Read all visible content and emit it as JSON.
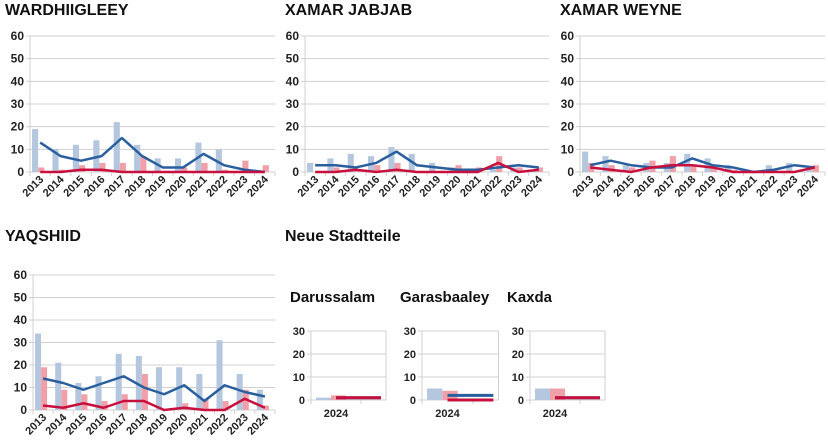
{
  "section_title": "Neue Stadtteile",
  "colors": {
    "bar_a": "#b4c7de",
    "bar_b": "#f0a0a8",
    "line_a": "#2a5f9e",
    "line_b": "#c8103e",
    "grid": "#d0d0d0"
  },
  "chart_data": [
    {
      "type": "bar+line",
      "title": "WARDHIIGLEEY",
      "categories": [
        "2013",
        "2014",
        "2015",
        "2016",
        "2017",
        "2018",
        "2019",
        "2020",
        "2021",
        "2022",
        "2023",
        "2024"
      ],
      "ylim": [
        0,
        60
      ],
      "yticks": [
        0,
        10,
        20,
        30,
        40,
        50,
        60
      ],
      "grid": true,
      "bars": [
        [
          19,
          10,
          12,
          14,
          22,
          12,
          6,
          6,
          13,
          10,
          0,
          0
        ],
        [
          2,
          1,
          3,
          4,
          4,
          7,
          0,
          2,
          4,
          1,
          5,
          3
        ]
      ],
      "lines": [
        [
          13,
          7,
          5,
          7,
          15,
          7,
          2,
          2,
          8,
          3,
          1,
          0
        ],
        [
          0,
          0,
          1,
          1,
          0,
          0,
          0,
          0,
          0,
          0,
          0,
          0
        ]
      ]
    },
    {
      "type": "bar+line",
      "title": "XAMAR JABJAB",
      "categories": [
        "2013",
        "2014",
        "2015",
        "2016",
        "2017",
        "2018",
        "2019",
        "2020",
        "2021",
        "2022",
        "2023",
        "2024"
      ],
      "ylim": [
        0,
        60
      ],
      "yticks": [
        0,
        10,
        20,
        30,
        40,
        50,
        60
      ],
      "grid": true,
      "bars": [
        [
          4,
          6,
          8,
          7,
          11,
          8,
          4,
          2,
          1,
          1,
          2,
          1
        ],
        [
          0,
          2,
          1,
          3,
          4,
          0,
          0,
          3,
          2,
          7,
          2,
          2
        ]
      ],
      "lines": [
        [
          3,
          3,
          2,
          4,
          9,
          3,
          2,
          1,
          1,
          2,
          3,
          2
        ],
        [
          0,
          0,
          1,
          0,
          1,
          0,
          0,
          0,
          0,
          4,
          0,
          1
        ]
      ]
    },
    {
      "type": "bar+line",
      "title": "XAMAR WEYNE",
      "categories": [
        "2013",
        "2014",
        "2015",
        "2016",
        "2017",
        "2018",
        "2019",
        "2020",
        "2021",
        "2022",
        "2023",
        "2024"
      ],
      "ylim": [
        0,
        60
      ],
      "yticks": [
        0,
        10,
        20,
        30,
        40,
        50,
        60
      ],
      "grid": true,
      "bars": [
        [
          9,
          7,
          3,
          4,
          4,
          8,
          6,
          3,
          0,
          3,
          4,
          2
        ],
        [
          4,
          3,
          2,
          5,
          7,
          3,
          2,
          1,
          0,
          0,
          0,
          3
        ]
      ],
      "lines": [
        [
          3,
          5,
          3,
          2,
          2,
          6,
          3,
          2,
          0,
          1,
          3,
          2
        ],
        [
          2,
          1,
          0,
          2,
          3,
          3,
          2,
          0,
          0,
          0,
          0,
          2
        ]
      ]
    },
    {
      "type": "bar+line",
      "title": "YAQSHIID",
      "categories": [
        "2013",
        "2014",
        "2015",
        "2016",
        "2017",
        "2018",
        "2019",
        "2020",
        "2021",
        "2022",
        "2023",
        "2024"
      ],
      "ylim": [
        0,
        60
      ],
      "yticks": [
        0,
        10,
        20,
        30,
        40,
        50,
        60
      ],
      "grid": true,
      "bars": [
        [
          34,
          21,
          12,
          15,
          25,
          24,
          19,
          19,
          16,
          31,
          16,
          9
        ],
        [
          19,
          9,
          7,
          4,
          7,
          16,
          0,
          3,
          5,
          4,
          9,
          2
        ]
      ],
      "lines": [
        [
          14,
          12,
          9,
          12,
          15,
          10,
          7,
          11,
          4,
          11,
          8,
          6
        ],
        [
          2,
          1,
          3,
          1,
          4,
          4,
          0,
          1,
          0,
          0,
          5,
          1
        ]
      ]
    },
    {
      "type": "bar+line",
      "title": "Darussalam",
      "categories": [
        "2024"
      ],
      "ylim": [
        0,
        30
      ],
      "yticks": [
        0,
        10,
        20,
        30
      ],
      "grid": true,
      "bars": [
        [
          1
        ],
        [
          2
        ]
      ],
      "lines": [
        [
          1
        ],
        [
          1
        ]
      ]
    },
    {
      "type": "bar+line",
      "title": "Garasbaaley",
      "categories": [
        "2024"
      ],
      "ylim": [
        0,
        30
      ],
      "yticks": [
        0,
        10,
        20,
        30
      ],
      "grid": true,
      "bars": [
        [
          5
        ],
        [
          4
        ]
      ],
      "lines": [
        [
          2
        ],
        [
          0
        ]
      ]
    },
    {
      "type": "bar+line",
      "title": "Kaxda",
      "categories": [
        "2024"
      ],
      "ylim": [
        0,
        30
      ],
      "yticks": [
        0,
        10,
        20,
        30
      ],
      "grid": true,
      "bars": [
        [
          5
        ],
        [
          5
        ]
      ],
      "lines": [
        [
          1
        ],
        [
          1
        ]
      ]
    }
  ]
}
